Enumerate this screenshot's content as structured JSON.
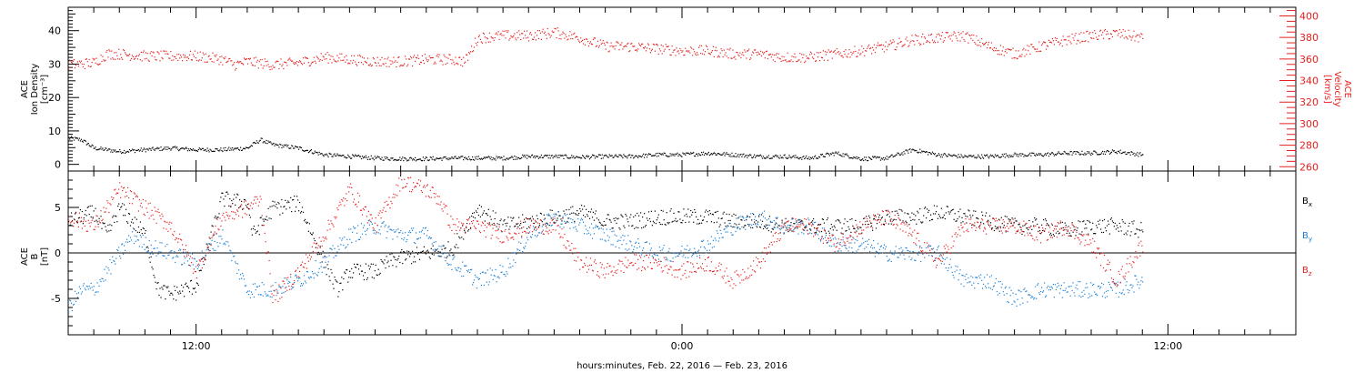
{
  "chart_data": [
    {
      "panel": "top",
      "type": "scatter",
      "x_hours_from": "2016-02-22 06:00",
      "xlim": [
        0,
        48
      ],
      "ylabel_lines": [
        "ACE",
        "Ion Density",
        "[cm⁻³]"
      ],
      "ylim": [
        -2,
        47
      ],
      "yticks": [
        0,
        10,
        20,
        30,
        40
      ],
      "y2label_lines": [
        "ACE",
        "Velocity",
        "[km/s]"
      ],
      "y2lim": [
        256,
        408
      ],
      "y2ticks": [
        260,
        280,
        300,
        320,
        340,
        360,
        380,
        400
      ],
      "grid": false,
      "series": [
        {
          "axis": "y",
          "color": "#000000",
          "x": [
            0,
            0.5,
            1,
            2,
            3,
            4,
            5,
            6,
            7,
            7.5,
            8,
            9,
            10,
            11,
            12,
            13,
            14,
            15,
            16,
            17,
            18,
            19,
            20,
            21,
            22,
            23,
            24,
            25,
            26,
            27,
            28,
            29,
            30,
            31,
            32,
            33,
            34,
            35,
            36,
            37,
            38,
            39,
            40,
            41,
            42
          ],
          "values": [
            8,
            7.5,
            5,
            4,
            4.5,
            5,
            4.5,
            4.5,
            5,
            7.5,
            6,
            5,
            3,
            2.5,
            2,
            1.8,
            1.8,
            2,
            2,
            2,
            2.5,
            2.5,
            2.3,
            2.5,
            2.5,
            3,
            3,
            3.5,
            3,
            2.5,
            2.5,
            2,
            3.5,
            1.8,
            2,
            4.5,
            3,
            2.5,
            2.5,
            3,
            3,
            3.5,
            3.5,
            4,
            3
          ]
        },
        {
          "axis": "y2",
          "color": "#e4201f",
          "x": [
            0,
            1,
            1.5,
            2,
            3,
            4,
            5,
            6,
            6.5,
            7,
            8,
            9,
            10,
            11,
            12,
            13,
            14,
            15,
            15.5,
            16,
            17,
            18,
            19,
            20,
            21,
            22,
            23,
            24,
            25,
            26,
            27,
            28,
            29,
            30,
            31,
            32,
            33,
            34,
            35,
            36,
            37,
            38,
            39,
            40,
            41,
            42
          ],
          "values": [
            355,
            357,
            365,
            365,
            363,
            363,
            363,
            360,
            355,
            358,
            355,
            357,
            362,
            360,
            358,
            358,
            360,
            360,
            358,
            380,
            382,
            382,
            385,
            380,
            372,
            372,
            370,
            368,
            368,
            365,
            365,
            362,
            362,
            365,
            368,
            372,
            378,
            380,
            382,
            372,
            365,
            372,
            378,
            382,
            384,
            380
          ]
        }
      ]
    },
    {
      "panel": "bottom",
      "type": "scatter",
      "x_hours_from": "2016-02-22 06:00",
      "xlim": [
        0,
        48
      ],
      "ylabel_lines": [
        "ACE",
        "B",
        "[nT]"
      ],
      "ylim": [
        -9,
        9
      ],
      "yticks": [
        -5,
        0,
        5
      ],
      "xticks_hours": [
        5,
        24,
        43
      ],
      "xticklabels": [
        "12:00",
        "0:00",
        "12:00"
      ],
      "xlabel": "hours:minutes, Feb. 22, 2016 — Feb. 23, 2016",
      "zero_line": true,
      "series": [
        {
          "name": "Bx",
          "color": "#000000",
          "x": [
            0,
            1,
            1.5,
            2,
            3,
            3.5,
            4,
            5,
            6,
            7,
            7.2,
            8,
            9,
            10,
            10.5,
            11,
            12,
            12.5,
            13,
            14,
            15,
            16,
            17,
            18,
            19,
            20,
            21,
            22,
            23,
            24,
            25,
            26,
            27,
            28,
            29,
            30,
            31,
            32,
            33,
            34,
            35,
            36,
            37,
            38,
            39,
            40,
            41,
            42
          ],
          "values": [
            3.5,
            4.5,
            2,
            5,
            2,
            -4,
            -4.5,
            -3.5,
            6,
            5.5,
            2,
            5,
            5.5,
            -1,
            -4,
            -2,
            -2,
            -1,
            -0.5,
            0,
            0.5,
            5,
            3,
            3.5,
            4,
            4.5,
            3.5,
            3.5,
            4,
            4,
            4,
            3.5,
            3.5,
            3,
            3,
            3,
            3,
            4,
            4,
            4.5,
            4,
            3.5,
            3,
            3,
            2.5,
            3,
            3,
            2.5
          ]
        },
        {
          "name": "By",
          "color": "#1a7fd6",
          "x": [
            0,
            0.5,
            1,
            1.5,
            2,
            2.5,
            3,
            4,
            5,
            6,
            7,
            8,
            9,
            10,
            11,
            12,
            13,
            14,
            15,
            16,
            17,
            18,
            19,
            20,
            21,
            22,
            23,
            24,
            25,
            26,
            27,
            28,
            29,
            30,
            31,
            32,
            33,
            34,
            35,
            36,
            37,
            38,
            39,
            40,
            41,
            42
          ],
          "values": [
            -6,
            -4,
            -4,
            -2,
            0,
            2,
            1,
            0,
            -1,
            2,
            -4,
            -4,
            -3,
            -1,
            2,
            3,
            2,
            2,
            -1,
            -3,
            -2,
            2,
            4,
            3,
            2,
            1,
            0,
            0,
            1,
            3,
            4,
            3,
            3,
            1,
            1,
            0,
            0,
            0,
            -3,
            -3,
            -5,
            -4,
            -4,
            -4,
            -4,
            -3
          ]
        },
        {
          "name": "Bz",
          "color": "#e4201f",
          "x": [
            0,
            1,
            1.5,
            2,
            3,
            4,
            5,
            6,
            7,
            7.5,
            8,
            9,
            10,
            11,
            12,
            13,
            14,
            14.5,
            15,
            16,
            17,
            18,
            19,
            20,
            21,
            22,
            23,
            24,
            25,
            26,
            27,
            28,
            29,
            30,
            31,
            32,
            33,
            34,
            35,
            36,
            37,
            38,
            39,
            40,
            41,
            42
          ],
          "values": [
            4,
            3,
            5,
            7,
            5,
            3,
            -2,
            4,
            5,
            6,
            -5,
            -2,
            2,
            7,
            3,
            8,
            7,
            6,
            3,
            3,
            2,
            3,
            3,
            -1,
            -2,
            -1,
            -1,
            -2,
            -1,
            -3,
            -1,
            3,
            3,
            1,
            3,
            4,
            2,
            -1,
            3,
            3,
            3,
            2,
            3,
            1,
            -3,
            1
          ]
        }
      ]
    }
  ],
  "legend": [
    {
      "label": "B",
      "sub": "x",
      "color": "#000000"
    },
    {
      "label": "B",
      "sub": "y",
      "color": "#1a7fd6"
    },
    {
      "label": "B",
      "sub": "z",
      "color": "#e4201f"
    }
  ]
}
